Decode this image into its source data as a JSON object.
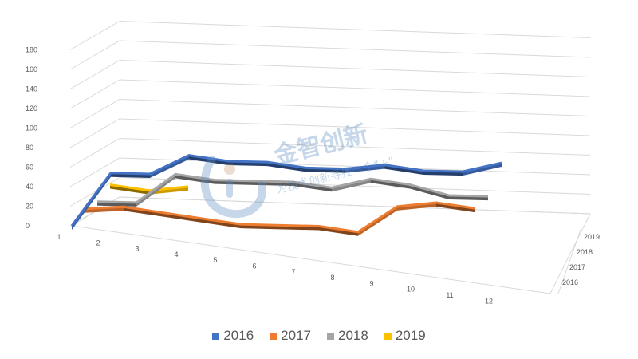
{
  "chart_data": {
    "type": "line",
    "style": "3d",
    "categories": [
      "1",
      "2",
      "3",
      "4",
      "5",
      "6",
      "7",
      "8",
      "9",
      "10",
      "11",
      "12"
    ],
    "depth_labels": [
      "2016",
      "2017",
      "2018",
      "2019"
    ],
    "series": [
      {
        "name": "2016",
        "color": "#4472C4",
        "values": [
          0,
          60,
          65,
          90,
          90,
          95,
          95,
          100,
          110,
          110,
          115,
          130
        ]
      },
      {
        "name": "2017",
        "color": "#ED7D31",
        "values": [
          10,
          18,
          18,
          18,
          18,
          23,
          28,
          28,
          60,
          70,
          70,
          null
        ]
      },
      {
        "name": "2018",
        "color": "#A5A5A5",
        "values": [
          10,
          15,
          50,
          50,
          55,
          60,
          60,
          75,
          75,
          70,
          75,
          null
        ]
      },
      {
        "name": "2019",
        "color": "#FFC000",
        "values": [
          20,
          20,
          30,
          null,
          null,
          null,
          null,
          null,
          null,
          null,
          null,
          null
        ]
      }
    ],
    "y_ticks": [
      "0",
      "20",
      "40",
      "60",
      "80",
      "100",
      "120",
      "140",
      "160",
      "180"
    ],
    "ylim": [
      0,
      180
    ],
    "grid": true,
    "legend_position": "bottom"
  },
  "watermark": {
    "title": "金智创新",
    "subtitle": "为技术创新寻找一个“+”"
  }
}
